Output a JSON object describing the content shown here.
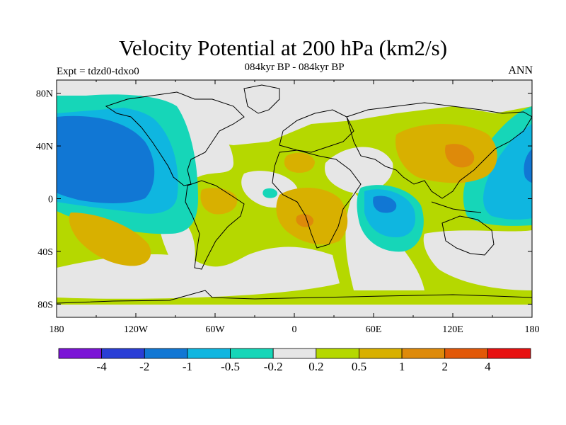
{
  "header": {
    "title": "Velocity Potential at 200 hPa (km2/s)",
    "subtitle": "084kyr BP - 084kyr BP",
    "left_label": "Expt = tdzd0-tdxo0",
    "right_label": "ANN"
  },
  "axes": {
    "lon_ticks": [
      "180",
      "120W",
      "60W",
      "0",
      "60E",
      "120E",
      "180"
    ],
    "lat_ticks": [
      "80N",
      "40N",
      "0",
      "40S",
      "80S"
    ]
  },
  "colorbar": {
    "labels": [
      "-4",
      "-2",
      "-1",
      "-0.5",
      "-0.2",
      "0.2",
      "0.5",
      "1",
      "2",
      "4"
    ],
    "colors": [
      "#7b14d6",
      "#2a3ed6",
      "#1177d4",
      "#0fb6e0",
      "#16d6b8",
      "#e6e6e6",
      "#b5d800",
      "#d8b000",
      "#de8a0a",
      "#e25808",
      "#e81010"
    ]
  },
  "palette": {
    "n1": "#16d6b8",
    "n2": "#0fb6e0",
    "n3": "#1177d4",
    "neutral": "#e6e6e6",
    "p1": "#b5d800",
    "p2": "#d8b000",
    "p3": "#de8a0a",
    "p4": "#e25808"
  }
}
